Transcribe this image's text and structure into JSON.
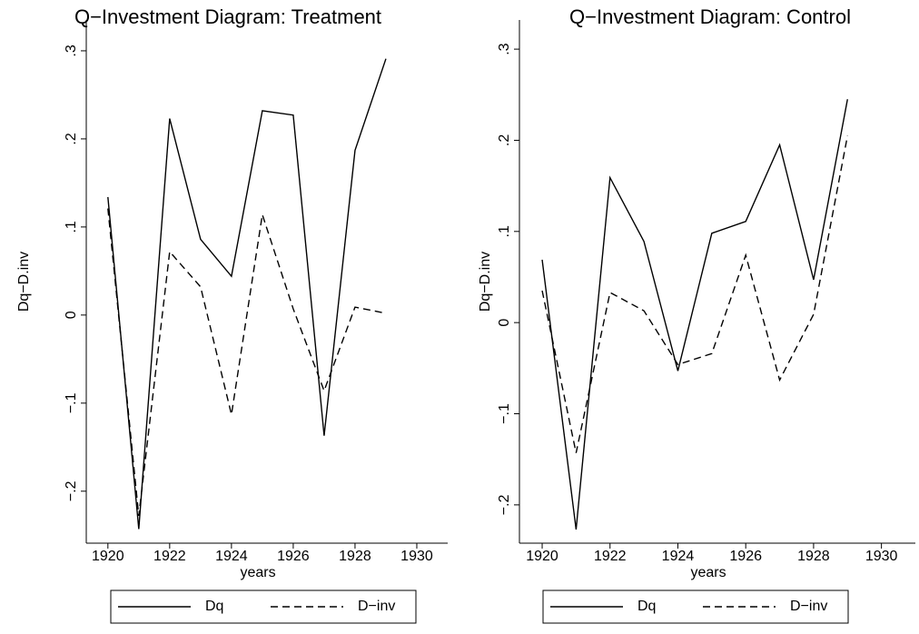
{
  "chart_data": [
    {
      "type": "line",
      "title": "Q−Investment Diagram: Treatment",
      "x_label": "years",
      "y_label": "Dq−D.inv",
      "x": [
        1920,
        1921,
        1922,
        1923,
        1924,
        1925,
        1926,
        1927,
        1928,
        1929
      ],
      "series": [
        {
          "name": "Dq",
          "color": "#000000",
          "dash": "solid",
          "values": [
            0.134,
            -0.243,
            0.223,
            0.086,
            0.044,
            0.232,
            0.227,
            -0.137,
            0.187,
            0.291
          ]
        },
        {
          "name": "D−inv",
          "color": "#000000",
          "dash": "dashed",
          "values": [
            0.121,
            -0.228,
            0.072,
            0.032,
            -0.113,
            0.114,
            0.007,
            -0.086,
            0.009,
            0.002
          ]
        }
      ],
      "xlim": [
        1919.3,
        1931.0
      ],
      "xticks": [
        1920,
        1922,
        1924,
        1926,
        1928,
        1930
      ],
      "ylim": [
        -0.259,
        0.335
      ],
      "yticks": [
        {
          "value": -0.2,
          "label": "−.2"
        },
        {
          "value": -0.1,
          "label": "−.1"
        },
        0,
        {
          "value": 0.1,
          "label": ".1"
        },
        {
          "value": 0.2,
          "label": ".2"
        },
        {
          "value": 0.3,
          "label": ".3"
        }
      ],
      "grid": false,
      "legend": "bottom"
    },
    {
      "type": "line",
      "title": "Q−Investment Diagram: Control",
      "x_label": "years",
      "y_label": "Dq−D.inv",
      "x": [
        1920,
        1921,
        1922,
        1923,
        1924,
        1925,
        1926,
        1927,
        1928,
        1929
      ],
      "series": [
        {
          "name": "Dq",
          "color": "#000000",
          "dash": "solid",
          "values": [
            0.069,
            -0.227,
            0.159,
            0.089,
            -0.053,
            0.098,
            0.111,
            0.195,
            0.047,
            0.245
          ]
        },
        {
          "name": "D−inv",
          "color": "#000000",
          "dash": "dashed",
          "values": [
            0.035,
            -0.143,
            0.033,
            0.013,
            -0.046,
            -0.034,
            0.074,
            -0.063,
            0.009,
            0.205
          ]
        }
      ],
      "xlim": [
        1919.33,
        1931.0
      ],
      "xticks": [
        1920,
        1922,
        1924,
        1926,
        1928,
        1930
      ],
      "ylim": [
        -0.242,
        0.332
      ],
      "yticks": [
        {
          "value": -0.2,
          "label": "−.2"
        },
        {
          "value": -0.1,
          "label": "−.1"
        },
        0,
        {
          "value": 0.1,
          "label": ".1"
        },
        {
          "value": 0.2,
          "label": ".2"
        },
        {
          "value": 0.3,
          "label": ".3"
        }
      ],
      "grid": false,
      "legend": "bottom"
    }
  ]
}
